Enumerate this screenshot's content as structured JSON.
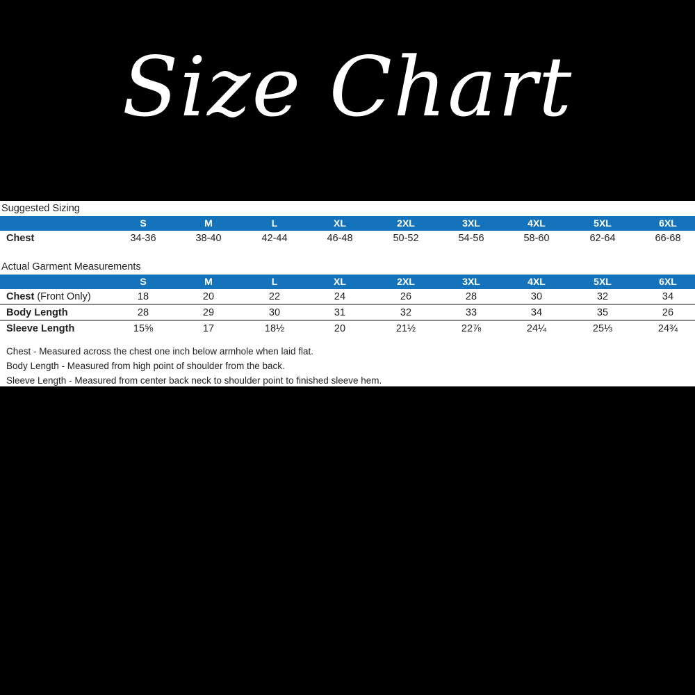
{
  "title": "Size Chart",
  "suggested": {
    "caption": "Suggested Sizing",
    "sizes": [
      "S",
      "M",
      "L",
      "XL",
      "2XL",
      "3XL",
      "4XL",
      "5XL",
      "6XL"
    ],
    "rows": [
      {
        "label": "Chest",
        "label_suffix": "",
        "values": [
          "34-36",
          "38-40",
          "42-44",
          "46-48",
          "50-52",
          "54-56",
          "58-60",
          "62-64",
          "66-68"
        ]
      }
    ]
  },
  "actual": {
    "caption": "Actual Garment Measurements",
    "sizes": [
      "S",
      "M",
      "L",
      "XL",
      "2XL",
      "3XL",
      "4XL",
      "5XL",
      "6XL"
    ],
    "rows": [
      {
        "label": "Chest",
        "label_suffix": " (Front Only)",
        "values": [
          "18",
          "20",
          "22",
          "24",
          "26",
          "28",
          "30",
          "32",
          "34"
        ]
      },
      {
        "label": "Body Length",
        "label_suffix": "",
        "values": [
          "28",
          "29",
          "30",
          "31",
          "32",
          "33",
          "34",
          "35",
          "26"
        ]
      },
      {
        "label": "Sleeve Length",
        "label_suffix": "",
        "values": [
          "15⅝",
          "17",
          "18½",
          "20",
          "21½",
          "22⅞",
          "24¼",
          "25⅓",
          "24¾"
        ]
      }
    ]
  },
  "notes": [
    "Chest - Measured across the chest one inch below armhole when laid flat.",
    "Body Length - Measured from high point of shoulder from the back.",
    "Sleeve Length - Measured from center back neck to shoulder point to finished sleeve hem."
  ],
  "colors": {
    "header_bar": "#1473bb",
    "background": "#000000"
  }
}
